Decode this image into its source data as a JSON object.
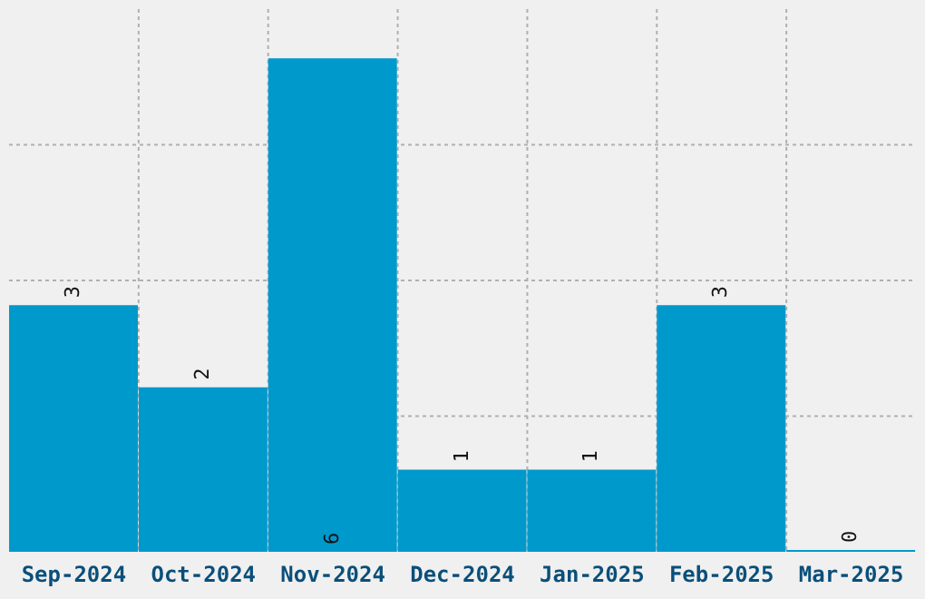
{
  "chart_data": {
    "type": "bar",
    "categories": [
      "Sep-2024",
      "Oct-2024",
      "Nov-2024",
      "Dec-2024",
      "Jan-2025",
      "Feb-2025",
      "Mar-2025"
    ],
    "values": [
      3,
      2,
      6,
      1,
      1,
      3,
      0
    ],
    "color": "#0099cc",
    "data_labels": true,
    "grid": true,
    "tick_labels": "x"
  }
}
